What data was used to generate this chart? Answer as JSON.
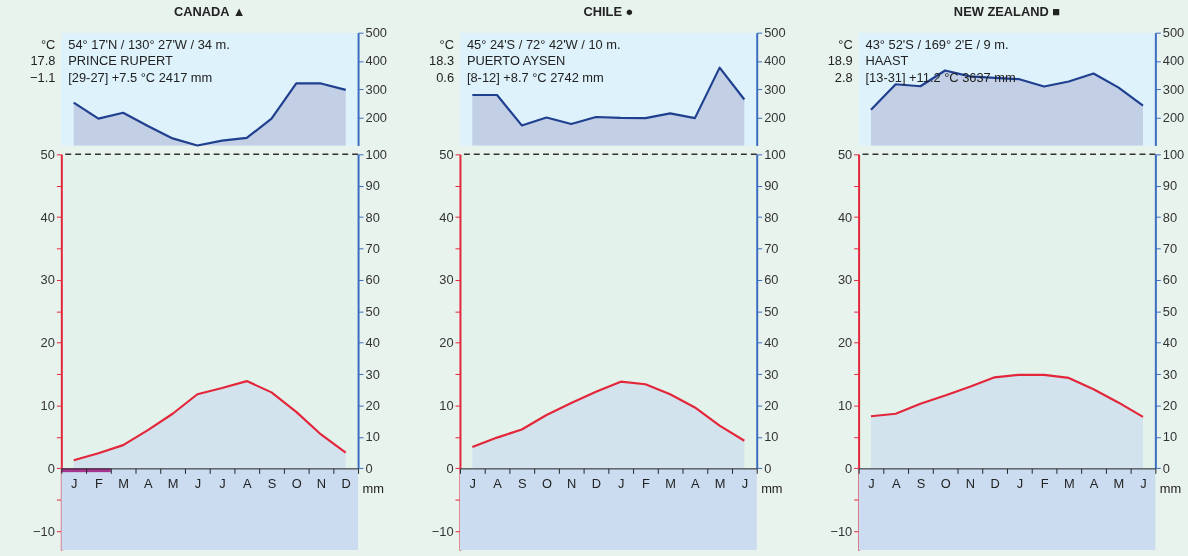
{
  "chart_data": [
    {
      "type": "area",
      "title": "CANADA ▲",
      "tick_labels": "y",
      "series": [
        {
          "type": "area",
          "color": "#1f3f8f",
          "values": [
            252,
            195,
            216,
            169,
            125,
            100,
            117,
            127,
            195,
            320,
            320,
            297
          ]
        }
      ],
      "ylim": [
        100,
        500
      ],
      "yticks": [
        200,
        300,
        400,
        500
      ],
      "annotations": [
        "54° 17'N / 130° 27'W / 34 m.",
        "PRINCE RUPERT",
        "[29-27]   +7.5 °C   2417 mm",
        "°C",
        "17.8",
        "−1.1"
      ]
    },
    {
      "type": "area",
      "y2label": "mm",
      "categories": [
        "J",
        "F",
        "M",
        "A",
        "M",
        "J",
        "J",
        "A",
        "S",
        "O",
        "N",
        "D"
      ],
      "series": [
        {
          "type": "area",
          "color": "#e3263a",
          "values": [
            1.3,
            2.4,
            3.7,
            6.1,
            8.7,
            11.8,
            12.8,
            13.9,
            12.1,
            9.0,
            5.4,
            2.5
          ]
        },
        {
          "type": "bar",
          "color": "#a8338f",
          "values": [
            -0.6,
            -0.6,
            null,
            null,
            null,
            null,
            null,
            null,
            null,
            null,
            null,
            null
          ]
        }
      ],
      "ylim": [
        -13,
        50
      ],
      "yticks": [
        {
          "value": -10,
          "label": "−10"
        },
        {
          "value": -5,
          "label": null
        },
        0,
        {
          "value": 5,
          "label": null
        },
        10,
        {
          "value": 15,
          "label": null
        },
        20,
        {
          "value": 25,
          "label": null
        },
        30,
        {
          "value": 35,
          "label": null
        },
        40,
        {
          "value": 45,
          "label": null
        },
        50
      ],
      "y2lim": [
        0,
        100
      ],
      "y2ticks": [
        0,
        10,
        20,
        30,
        40,
        50,
        60,
        70,
        80,
        90,
        100
      ],
      "ref_lines": [
        {
          "axis": "y",
          "value": 50,
          "line_style": "dashed",
          "color": "#333333"
        }
      ],
      "bands": [
        {
          "axis": "y",
          "from": -13,
          "to": 0,
          "color": "#cbdcf0"
        }
      ]
    },
    {
      "type": "area",
      "title": "CHILE ●",
      "tick_labels": "y",
      "series": [
        {
          "type": "area",
          "color": "#1f3f8f",
          "values": [
            279,
            279,
            171,
            199,
            176,
            201,
            198,
            197,
            214,
            197,
            376,
            263
          ]
        }
      ],
      "ylim": [
        100,
        500
      ],
      "yticks": [
        200,
        300,
        400,
        500
      ],
      "annotations": [
        "45° 24'S / 72° 42'W / 10 m.",
        "PUERTO AYSEN",
        "[8-12]   +8.7 °C   2742 mm",
        "°C",
        "18.3",
        "0.6"
      ]
    },
    {
      "type": "area",
      "y2label": "mm",
      "categories": [
        "J",
        "A",
        "S",
        "O",
        "N",
        "D",
        "J",
        "F",
        "M",
        "A",
        "M",
        "J"
      ],
      "series": [
        {
          "type": "area",
          "color": "#e3263a",
          "values": [
            3.4,
            4.9,
            6.2,
            8.5,
            10.4,
            12.2,
            13.8,
            13.4,
            11.8,
            9.7,
            6.8,
            4.4
          ]
        }
      ],
      "ylim": [
        -13,
        50
      ],
      "yticks": [
        {
          "value": -10,
          "label": "−10"
        },
        {
          "value": -5,
          "label": null
        },
        0,
        {
          "value": 5,
          "label": null
        },
        10,
        {
          "value": 15,
          "label": null
        },
        20,
        {
          "value": 25,
          "label": null
        },
        30,
        {
          "value": 35,
          "label": null
        },
        40,
        {
          "value": 45,
          "label": null
        },
        50
      ],
      "y2lim": [
        0,
        100
      ],
      "y2ticks": [
        0,
        10,
        20,
        30,
        40,
        50,
        60,
        70,
        80,
        90,
        100
      ],
      "ref_lines": [
        {
          "axis": "y",
          "value": 50,
          "line_style": "dashed",
          "color": "#333333"
        }
      ],
      "bands": [
        {
          "axis": "y",
          "from": -13,
          "to": 0,
          "color": "#cbdcf0"
        }
      ]
    },
    {
      "type": "area",
      "title": "NEW ZEALAND ■",
      "tick_labels": "y",
      "series": [
        {
          "type": "area",
          "color": "#1f3f8f",
          "values": [
            227,
            317,
            310,
            366,
            345,
            340,
            335,
            309,
            327,
            355,
            306,
            241
          ]
        }
      ],
      "ylim": [
        100,
        500
      ],
      "yticks": [
        200,
        300,
        400,
        500
      ],
      "annotations": [
        "43° 52'S / 169° 2'E / 9 m.",
        "HAAST",
        "[13-31]   +11.2 °C 3637 mm",
        "°C",
        "18.9",
        "2.8"
      ]
    },
    {
      "type": "area",
      "y2label": "mm",
      "categories": [
        "J",
        "A",
        "S",
        "O",
        "N",
        "D",
        "J",
        "F",
        "M",
        "A",
        "M",
        "J"
      ],
      "series": [
        {
          "type": "area",
          "color": "#e3263a",
          "values": [
            8.3,
            8.7,
            10.3,
            11.6,
            13.0,
            14.5,
            14.9,
            14.9,
            14.4,
            12.6,
            10.5,
            8.2
          ]
        }
      ],
      "ylim": [
        -13,
        50
      ],
      "yticks": [
        {
          "value": -10,
          "label": "−10"
        },
        {
          "value": -5,
          "label": null
        },
        0,
        {
          "value": 5,
          "label": null
        },
        10,
        {
          "value": 15,
          "label": null
        },
        20,
        {
          "value": 25,
          "label": null
        },
        30,
        {
          "value": 35,
          "label": null
        },
        40,
        {
          "value": 45,
          "label": null
        },
        50
      ],
      "y2lim": [
        0,
        100
      ],
      "y2ticks": [
        0,
        10,
        20,
        30,
        40,
        50,
        60,
        70,
        80,
        90,
        100
      ],
      "ref_lines": [
        {
          "axis": "y",
          "value": 50,
          "line_style": "dashed",
          "color": "#333333"
        }
      ],
      "bands": [
        {
          "axis": "y",
          "from": -13,
          "to": 0,
          "color": "#cbdcf0"
        }
      ]
    }
  ]
}
